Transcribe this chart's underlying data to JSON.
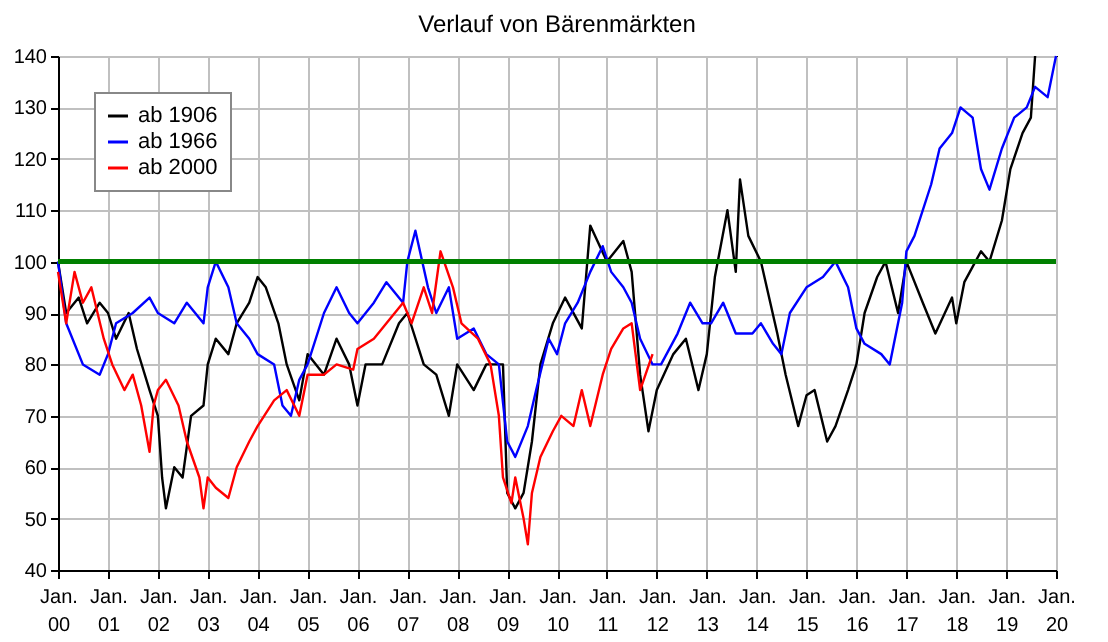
{
  "chart_data": {
    "type": "line",
    "title": "Verlauf von Bärenmärkten",
    "ylim": [
      40,
      140
    ],
    "yticks": [
      40,
      50,
      60,
      70,
      80,
      90,
      100,
      110,
      120,
      130,
      140
    ],
    "xlim": [
      "2000-01",
      "2020-01"
    ],
    "xticks": [
      {
        "value": "2000-01",
        "label": "Jan. 00"
      },
      {
        "value": "2001-01",
        "label": "Jan. 01"
      },
      {
        "value": "2002-01",
        "label": "Jan. 02"
      },
      {
        "value": "2003-01",
        "label": "Jan. 03"
      },
      {
        "value": "2004-01",
        "label": "Jan. 04"
      },
      {
        "value": "2005-01",
        "label": "Jan. 05"
      },
      {
        "value": "2006-01",
        "label": "Jan. 06"
      },
      {
        "value": "2007-01",
        "label": "Jan. 07"
      },
      {
        "value": "2008-01",
        "label": "Jan. 08"
      },
      {
        "value": "2009-01",
        "label": "Jan. 09"
      },
      {
        "value": "2010-01",
        "label": "Jan. 10"
      },
      {
        "value": "2011-01",
        "label": "Jan. 11"
      },
      {
        "value": "2012-01",
        "label": "Jan. 12"
      },
      {
        "value": "2013-01",
        "label": "Jan. 13"
      },
      {
        "value": "2014-01",
        "label": "Jan. 14"
      },
      {
        "value": "2015-01",
        "label": "Jan. 15"
      },
      {
        "value": "2016-01",
        "label": "Jan. 16"
      },
      {
        "value": "2017-01",
        "label": "Jan. 17"
      },
      {
        "value": "2018-01",
        "label": "Jan. 18"
      },
      {
        "value": "2019-01",
        "label": "Jan. 19"
      },
      {
        "value": "2020-01",
        "label": "Jan. 20"
      }
    ],
    "grid": true,
    "legend": "top left",
    "marker": "none",
    "line_style": "solid",
    "ref_lines": [
      {
        "axis": "y",
        "value": 100,
        "color": "#008000"
      }
    ],
    "series": [
      {
        "name": "ab 1906",
        "color": "#000000",
        "x": [
          "2000-01",
          "2000-03",
          "2000-06",
          "2000-08",
          "2000-11",
          "2001-01",
          "2001-03",
          "2001-06",
          "2001-08",
          "2001-11",
          "2002-01",
          "2002-02",
          "2002-03",
          "2002-05",
          "2002-07",
          "2002-09",
          "2002-12",
          "2003-01",
          "2003-03",
          "2003-06",
          "2003-08",
          "2003-11",
          "2004-01",
          "2004-03",
          "2004-06",
          "2004-08",
          "2004-11",
          "2005-01",
          "2005-05",
          "2005-08",
          "2005-11",
          "2006-01",
          "2006-03",
          "2006-07",
          "2006-11",
          "2007-01",
          "2007-05",
          "2007-08",
          "2007-11",
          "2008-01",
          "2008-05",
          "2008-08",
          "2008-12",
          "2009-01",
          "2009-03",
          "2009-05",
          "2009-07",
          "2009-09",
          "2009-12",
          "2010-03",
          "2010-07",
          "2010-09",
          "2011-01",
          "2011-05",
          "2011-07",
          "2011-09",
          "2011-11",
          "2012-01",
          "2012-05",
          "2012-08",
          "2012-11",
          "2013-01",
          "2013-03",
          "2013-06",
          "2013-08",
          "2013-09",
          "2013-11",
          "2014-02",
          "2014-06",
          "2014-08",
          "2014-11",
          "2015-01",
          "2015-03",
          "2015-06",
          "2015-08",
          "2015-11",
          "2016-01",
          "2016-03",
          "2016-06",
          "2016-08",
          "2016-11",
          "2017-01",
          "2017-05",
          "2017-08",
          "2017-12",
          "2018-01",
          "2018-03",
          "2018-07",
          "2018-09",
          "2018-12",
          "2019-02",
          "2019-05",
          "2019-07",
          "2019-08"
        ],
        "values": [
          100,
          90,
          93,
          88,
          92,
          90,
          85,
          90,
          83,
          75,
          70,
          58,
          52,
          60,
          58,
          70,
          72,
          80,
          85,
          82,
          88,
          92,
          97,
          95,
          88,
          80,
          73,
          82,
          78,
          85,
          80,
          72,
          80,
          80,
          88,
          90,
          80,
          78,
          70,
          80,
          75,
          80,
          80,
          55,
          52,
          55,
          65,
          80,
          88,
          93,
          87,
          107,
          100,
          104,
          98,
          78,
          67,
          75,
          82,
          85,
          75,
          82,
          97,
          110,
          98,
          116,
          105,
          100,
          86,
          78,
          68,
          74,
          75,
          65,
          68,
          75,
          80,
          90,
          97,
          100,
          90,
          100,
          92,
          86,
          93,
          88,
          96,
          102,
          100,
          108,
          118,
          125,
          128,
          140
        ]
      },
      {
        "name": "ab 1966",
        "color": "#0000ff",
        "x": [
          "2000-01",
          "2000-03",
          "2000-07",
          "2000-11",
          "2001-01",
          "2001-03",
          "2001-07",
          "2001-11",
          "2002-01",
          "2002-05",
          "2002-08",
          "2002-12",
          "2003-01",
          "2003-03",
          "2003-06",
          "2003-08",
          "2003-11",
          "2004-01",
          "2004-05",
          "2004-07",
          "2004-09",
          "2004-11",
          "2005-01",
          "2005-05",
          "2005-08",
          "2005-11",
          "2006-01",
          "2006-05",
          "2006-08",
          "2006-12",
          "2007-01",
          "2007-03",
          "2007-06",
          "2007-08",
          "2007-11",
          "2008-01",
          "2008-05",
          "2008-08",
          "2008-11",
          "2009-01",
          "2009-03",
          "2009-06",
          "2009-08",
          "2009-11",
          "2010-01",
          "2010-03",
          "2010-06",
          "2010-09",
          "2010-12",
          "2011-02",
          "2011-05",
          "2011-07",
          "2011-09",
          "2011-12",
          "2012-02",
          "2012-06",
          "2012-09",
          "2012-12",
          "2013-02",
          "2013-05",
          "2013-08",
          "2013-12",
          "2014-02",
          "2014-05",
          "2014-07",
          "2014-09",
          "2015-01",
          "2015-05",
          "2015-08",
          "2015-11",
          "2016-01",
          "2016-03",
          "2016-07",
          "2016-09",
          "2016-12",
          "2017-01",
          "2017-03",
          "2017-07",
          "2017-09",
          "2017-12",
          "2018-02",
          "2018-05",
          "2018-07",
          "2018-09",
          "2018-12",
          "2019-03",
          "2019-06",
          "2019-08",
          "2019-11",
          "2020-01"
        ],
        "values": [
          100,
          88,
          80,
          78,
          82,
          88,
          90,
          93,
          90,
          88,
          92,
          88,
          95,
          100,
          95,
          88,
          85,
          82,
          80,
          72,
          70,
          77,
          80,
          90,
          95,
          90,
          88,
          92,
          96,
          92,
          100,
          106,
          95,
          90,
          95,
          85,
          87,
          82,
          80,
          65,
          62,
          68,
          75,
          85,
          82,
          88,
          92,
          98,
          103,
          98,
          95,
          92,
          85,
          80,
          80,
          86,
          92,
          88,
          88,
          92,
          86,
          86,
          88,
          84,
          82,
          90,
          95,
          97,
          100,
          95,
          87,
          84,
          82,
          80,
          92,
          102,
          105,
          115,
          122,
          125,
          130,
          128,
          118,
          114,
          122,
          128,
          130,
          134,
          132,
          140
        ]
      },
      {
        "name": "ab 2000",
        "color": "#ff0000",
        "x": [
          "2000-01",
          "2000-03",
          "2000-05",
          "2000-07",
          "2000-09",
          "2000-12",
          "2001-02",
          "2001-05",
          "2001-07",
          "2001-09",
          "2001-11",
          "2001-12",
          "2002-01",
          "2002-03",
          "2002-06",
          "2002-08",
          "2002-11",
          "2002-12",
          "2003-01",
          "2003-03",
          "2003-06",
          "2003-08",
          "2003-11",
          "2004-01",
          "2004-05",
          "2004-08",
          "2004-11",
          "2005-01",
          "2005-05",
          "2005-08",
          "2005-12",
          "2006-01",
          "2006-05",
          "2006-08",
          "2006-12",
          "2007-02",
          "2007-05",
          "2007-07",
          "2007-09",
          "2007-12",
          "2008-02",
          "2008-06",
          "2008-09",
          "2008-11",
          "2008-12",
          "2009-02",
          "2009-03",
          "2009-05",
          "2009-06",
          "2009-07",
          "2009-09",
          "2009-12",
          "2010-02",
          "2010-05",
          "2010-07",
          "2010-09",
          "2010-12",
          "2011-02",
          "2011-05",
          "2011-07",
          "2011-09",
          "2011-12"
        ],
        "values": [
          98,
          88,
          98,
          92,
          95,
          85,
          80,
          75,
          78,
          72,
          63,
          72,
          75,
          77,
          72,
          65,
          58,
          52,
          58,
          56,
          54,
          60,
          65,
          68,
          73,
          75,
          70,
          78,
          78,
          80,
          79,
          83,
          85,
          88,
          92,
          88,
          95,
          90,
          102,
          95,
          88,
          85,
          80,
          70,
          58,
          53,
          58,
          50,
          45,
          55,
          62,
          67,
          70,
          68,
          75,
          68,
          78,
          83,
          87,
          88,
          75,
          82
        ]
      }
    ]
  }
}
